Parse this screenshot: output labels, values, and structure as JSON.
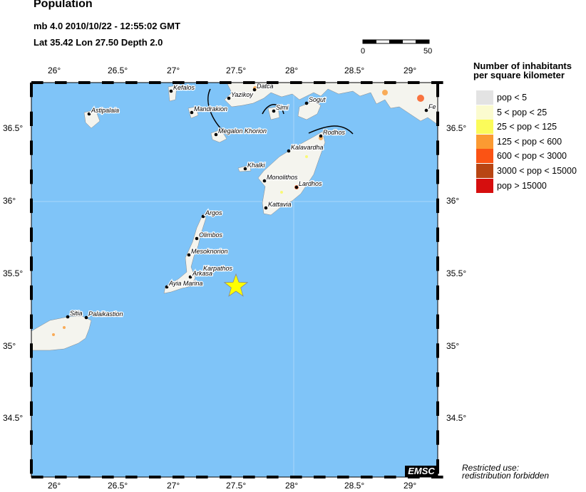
{
  "header": {
    "title": "Population",
    "event_line": "mb 4.0  2010/10/22 - 12:55:02 GMT",
    "location_line": "Lat 35.42    Lon  27.50    Depth  2.0"
  },
  "map": {
    "lon_ticks": [
      "26°",
      "26.5°",
      "27°",
      "27.5°",
      "28°",
      "28.5°",
      "29°"
    ],
    "lat_ticks": [
      "36.5°",
      "36°",
      "35.5°",
      "35°",
      "34.5°"
    ],
    "scale_bar": {
      "start": "0",
      "end": "50"
    },
    "epicenter": {
      "lat": 35.42,
      "lon": 27.5,
      "marker": "yellow-star"
    },
    "places": [
      "Kefalos",
      "Yazikoy",
      "Datca",
      "Mandrakion",
      "Simi",
      "Sogut",
      "Megalon Khorion",
      "Rodhos",
      "Kalavardha",
      "Khalki",
      "Monolithos",
      "Lardhos",
      "Kattavia",
      "Argos",
      "Olimbos",
      "Mesoknorion",
      "Karpathos",
      "Arkasa",
      "Ayia Marina",
      "Sitia",
      "Palaikastion",
      "Astipalaia",
      "Fe"
    ],
    "colors": {
      "sea": "#7fc4f8",
      "land": "#f4f4ee",
      "star": "#ffff00"
    }
  },
  "legend": {
    "title_line1": "Number of inhabitants",
    "title_line2": "per square kilometer",
    "items": [
      {
        "label": "pop < 5",
        "color": "#e3e3e3"
      },
      {
        "label": "5 < pop < 25",
        "color": "#fbfbcf"
      },
      {
        "label": "25 < pop < 125",
        "color": "#fbfb5a"
      },
      {
        "label": "125 < pop < 600",
        "color": "#fb9a32"
      },
      {
        "label": "600 < pop < 3000",
        "color": "#fb5314"
      },
      {
        "label": "3000 < pop < 15000",
        "color": "#b84513"
      },
      {
        "label": "pop > 15000",
        "color": "#d60e0e"
      }
    ]
  },
  "footer": {
    "logo": "EMSC",
    "restricted_line1": "Restricted use:",
    "restricted_line2": "redistribution forbidden"
  }
}
